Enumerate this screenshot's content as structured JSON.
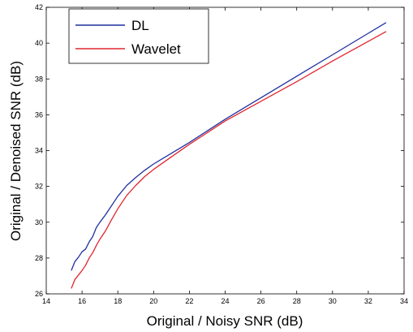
{
  "chart_data": {
    "type": "line",
    "title": "",
    "xlabel": "Original / Noisy SNR (dB)",
    "ylabel": "Original / Denoised SNR (dB)",
    "xlim": [
      14,
      34
    ],
    "ylim": [
      26,
      42
    ],
    "xticks": [
      "14",
      "16",
      "18",
      "20",
      "22",
      "24",
      "26",
      "28",
      "30",
      "32",
      "34"
    ],
    "yticks": [
      "26",
      "28",
      "30",
      "32",
      "34",
      "36",
      "38",
      "40",
      "42"
    ],
    "grid": false,
    "legend_position": "top-left",
    "series": [
      {
        "name": "DL",
        "color": "#1f2f9e",
        "x": [
          15.4,
          15.6,
          15.8,
          16.0,
          16.2,
          16.4,
          16.6,
          16.8,
          17.0,
          17.3,
          17.6,
          18.0,
          18.5,
          19.0,
          19.5,
          20.0,
          21.0,
          22.0,
          23.0,
          24.0,
          26.0,
          28.0,
          30.0,
          32.0,
          33.0
        ],
        "y": [
          27.3,
          27.8,
          28.05,
          28.35,
          28.5,
          28.9,
          29.2,
          29.7,
          30.0,
          30.4,
          30.85,
          31.45,
          32.05,
          32.5,
          32.9,
          33.25,
          33.85,
          34.45,
          35.1,
          35.75,
          36.95,
          38.15,
          39.35,
          40.55,
          41.15
        ]
      },
      {
        "name": "Wavelet",
        "color": "#e0262e",
        "x": [
          15.4,
          15.6,
          15.8,
          16.0,
          16.2,
          16.4,
          16.6,
          16.8,
          17.0,
          17.3,
          17.6,
          18.0,
          18.5,
          19.0,
          19.5,
          20.0,
          21.0,
          22.0,
          23.0,
          24.0,
          26.0,
          28.0,
          30.0,
          32.0,
          33.0
        ],
        "y": [
          26.3,
          26.8,
          27.05,
          27.3,
          27.6,
          28.0,
          28.3,
          28.7,
          29.05,
          29.5,
          30.05,
          30.75,
          31.5,
          32.05,
          32.55,
          32.95,
          33.65,
          34.35,
          35.0,
          35.65,
          36.75,
          37.85,
          39.0,
          40.1,
          40.65
        ]
      }
    ]
  }
}
